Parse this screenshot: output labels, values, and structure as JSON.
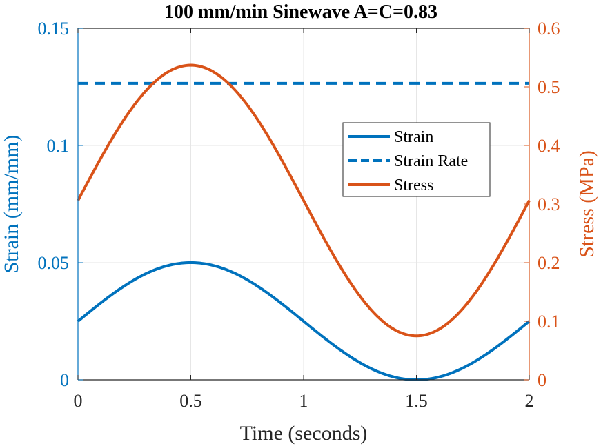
{
  "chart_data": {
    "type": "line",
    "title": "100 mm/min Sinewave A=C=0.83",
    "xlabel": "Time (seconds)",
    "ylabel_left": "Strain (mm/mm)",
    "ylabel_right": "Stress (MPa)",
    "xlim": [
      0,
      2
    ],
    "ylim_left": [
      0,
      0.15
    ],
    "ylim_right": [
      0,
      0.6
    ],
    "xticks": [
      "0",
      "0.5",
      "1",
      "1.5",
      "2"
    ],
    "yticks_left": [
      "0",
      "0.05",
      "0.1",
      "0.15"
    ],
    "yticks_right": [
      "0",
      "0.1",
      "0.2",
      "0.3",
      "0.4",
      "0.5",
      "0.6"
    ],
    "grid": true,
    "legend_position": "right-center",
    "series": [
      {
        "name": "Strain",
        "axis": "left",
        "style": "solid",
        "color": "#0072BD",
        "function": "sine",
        "offset": 0.025,
        "amplitude": 0.025,
        "period": 2,
        "x": [
          0,
          0.25,
          0.5,
          0.75,
          1,
          1.25,
          1.5,
          1.75,
          2
        ],
        "y": [
          0.025,
          0.0427,
          0.05,
          0.0427,
          0.025,
          0.0073,
          0,
          0.0073,
          0.025
        ]
      },
      {
        "name": "Strain Rate",
        "axis": "left",
        "style": "dashed",
        "color": "#0072BD",
        "x": [
          0,
          2
        ],
        "y": [
          0.1265,
          0.1265
        ]
      },
      {
        "name": "Stress",
        "axis": "right",
        "style": "solid",
        "color": "#D95319",
        "function": "sine",
        "offset": 0.306,
        "amplitude": 0.231,
        "period": 2,
        "x": [
          0,
          0.25,
          0.5,
          0.75,
          1,
          1.25,
          1.5,
          1.75,
          2
        ],
        "y": [
          0.306,
          0.469,
          0.537,
          0.469,
          0.306,
          0.143,
          0.075,
          0.143,
          0.306
        ]
      }
    ],
    "colors": {
      "left_axis": "#0072BD",
      "right_axis": "#D95319",
      "frame": "#262626",
      "grid": "#E6E6E6"
    }
  }
}
